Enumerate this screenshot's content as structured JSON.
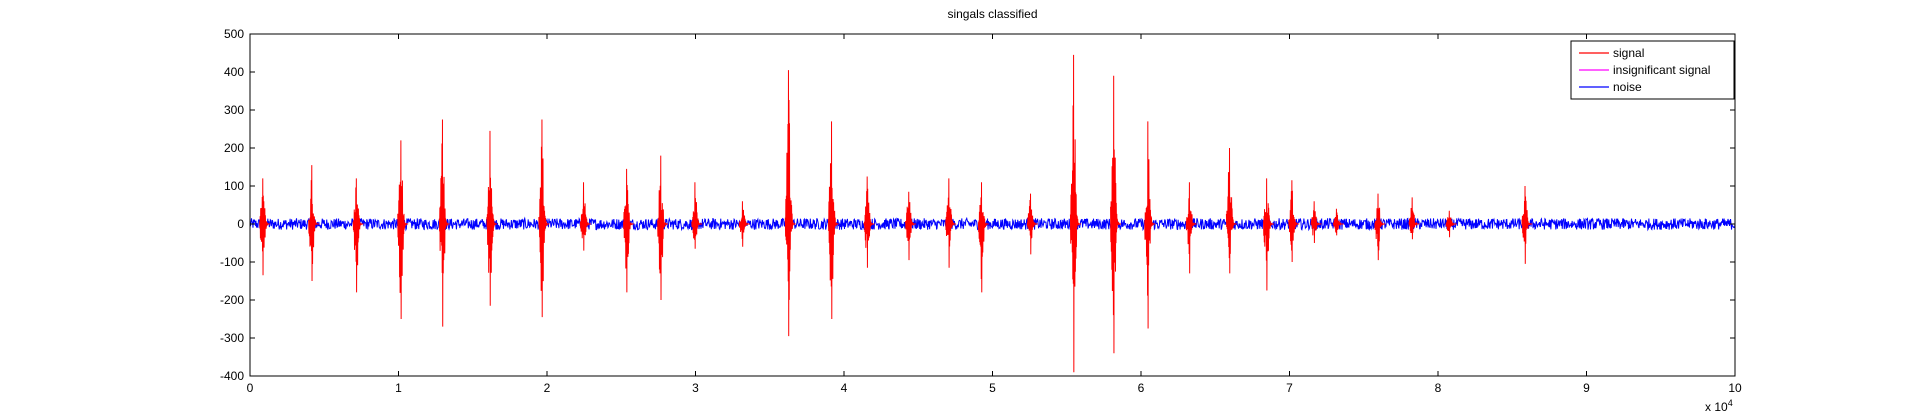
{
  "chart_data": {
    "type": "line",
    "title": "singals classified",
    "xlabel": "",
    "ylabel": "",
    "xlim": [
      0,
      100000
    ],
    "ylim": [
      -400,
      500
    ],
    "x_multiplier_label": "x 10",
    "x_multiplier_exponent": "4",
    "x_ticks": [
      0,
      10000,
      20000,
      30000,
      40000,
      50000,
      60000,
      70000,
      80000,
      90000,
      100000
    ],
    "x_tick_labels": [
      "0",
      "1",
      "2",
      "3",
      "4",
      "5",
      "6",
      "7",
      "8",
      "9",
      "10"
    ],
    "y_ticks": [
      -400,
      -300,
      -200,
      -100,
      0,
      100,
      200,
      300,
      400,
      500
    ],
    "y_tick_labels": [
      "-400",
      "-300",
      "-200",
      "-100",
      "0",
      "100",
      "200",
      "300",
      "400",
      "500"
    ],
    "grid": false,
    "legend_position": "top-right",
    "series": [
      {
        "name": "signal",
        "color": "#ff0000",
        "description_events": [
          {
            "x": 1000,
            "max": 120,
            "min": -135
          },
          {
            "x": 4300,
            "max": 155,
            "min": -150
          },
          {
            "x": 7300,
            "max": 120,
            "min": -180
          },
          {
            "x": 10300,
            "max": 220,
            "min": -250
          },
          {
            "x": 13100,
            "max": 275,
            "min": -270
          },
          {
            "x": 16300,
            "max": 245,
            "min": -215
          },
          {
            "x": 19800,
            "max": 275,
            "min": -245
          },
          {
            "x": 22600,
            "max": 110,
            "min": -70
          },
          {
            "x": 25500,
            "max": 145,
            "min": -180
          },
          {
            "x": 27800,
            "max": 180,
            "min": -200
          },
          {
            "x": 30100,
            "max": 110,
            "min": -65
          },
          {
            "x": 33300,
            "max": 60,
            "min": -60
          },
          {
            "x": 36400,
            "max": 405,
            "min": -295
          },
          {
            "x": 39300,
            "max": 270,
            "min": -250
          },
          {
            "x": 41700,
            "max": 125,
            "min": -115
          },
          {
            "x": 44500,
            "max": 85,
            "min": -95
          },
          {
            "x": 47200,
            "max": 120,
            "min": -115
          },
          {
            "x": 49400,
            "max": 110,
            "min": -180
          },
          {
            "x": 52700,
            "max": 80,
            "min": -80
          },
          {
            "x": 55600,
            "max": 445,
            "min": -390
          },
          {
            "x": 58300,
            "max": 390,
            "min": -340
          },
          {
            "x": 60600,
            "max": 270,
            "min": -275
          },
          {
            "x": 63400,
            "max": 110,
            "min": -130
          },
          {
            "x": 66100,
            "max": 200,
            "min": -130
          },
          {
            "x": 68600,
            "max": 120,
            "min": -175
          },
          {
            "x": 70300,
            "max": 115,
            "min": -100
          },
          {
            "x": 71800,
            "max": 60,
            "min": -50
          },
          {
            "x": 73300,
            "max": 40,
            "min": -30
          },
          {
            "x": 76100,
            "max": 80,
            "min": -95
          },
          {
            "x": 78400,
            "max": 70,
            "min": -40
          },
          {
            "x": 80900,
            "max": 35,
            "min": -35
          },
          {
            "x": 86000,
            "max": 100,
            "min": -105
          }
        ]
      },
      {
        "name": "insignificant signal",
        "color": "#ff00ff",
        "description_events": []
      },
      {
        "name": "noise",
        "color": "#0000ff",
        "amplitude": 15,
        "x_range": [
          0,
          100000
        ]
      }
    ]
  }
}
